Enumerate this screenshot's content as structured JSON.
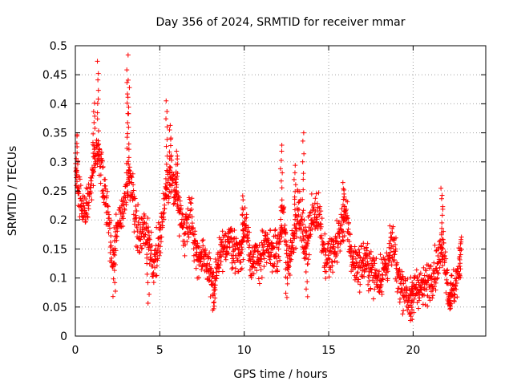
{
  "chart_data": {
    "type": "scatter",
    "title": "Day 356 of 2024, SRMTID for receiver mmar",
    "xlabel": "GPS time / hours",
    "ylabel": "SRMTID / TECUs",
    "xlim": [
      0,
      24.3
    ],
    "ylim": [
      0,
      0.5
    ],
    "x_ticks": [
      0,
      5,
      10,
      15,
      20
    ],
    "x_tick_labels": [
      "0",
      "5",
      "10",
      "15",
      "20"
    ],
    "y_ticks": [
      0,
      0.05,
      0.1,
      0.15,
      0.2,
      0.25,
      0.3,
      0.35,
      0.4,
      0.45,
      0.5
    ],
    "y_tick_labels": [
      "0",
      "0.05",
      "0.1",
      "0.15",
      "0.2",
      "0.25",
      "0.3",
      "0.35",
      "0.4",
      "0.45",
      "0.5"
    ],
    "grid": true,
    "series": [
      {
        "name": "mmar",
        "marker": "+",
        "color": "#ff0000",
        "x_start": 0.0,
        "x_end": 22.8,
        "trend": [
          [
            0.0,
            0.27
          ],
          [
            0.3,
            0.24
          ],
          [
            0.6,
            0.21
          ],
          [
            1.0,
            0.27
          ],
          [
            1.3,
            0.32
          ],
          [
            1.6,
            0.27
          ],
          [
            1.9,
            0.22
          ],
          [
            2.2,
            0.13
          ],
          [
            2.5,
            0.19
          ],
          [
            2.8,
            0.21
          ],
          [
            3.0,
            0.25
          ],
          [
            3.2,
            0.28
          ],
          [
            3.5,
            0.22
          ],
          [
            3.8,
            0.17
          ],
          [
            4.0,
            0.19
          ],
          [
            4.3,
            0.17
          ],
          [
            4.6,
            0.12
          ],
          [
            5.0,
            0.17
          ],
          [
            5.3,
            0.23
          ],
          [
            5.6,
            0.27
          ],
          [
            5.9,
            0.26
          ],
          [
            6.2,
            0.21
          ],
          [
            6.5,
            0.18
          ],
          [
            6.8,
            0.22
          ],
          [
            7.1,
            0.15
          ],
          [
            7.5,
            0.13
          ],
          [
            7.9,
            0.12
          ],
          [
            8.2,
            0.08
          ],
          [
            8.5,
            0.13
          ],
          [
            8.8,
            0.15
          ],
          [
            9.1,
            0.17
          ],
          [
            9.4,
            0.15
          ],
          [
            9.8,
            0.14
          ],
          [
            10.1,
            0.2
          ],
          [
            10.4,
            0.13
          ],
          [
            10.8,
            0.13
          ],
          [
            11.2,
            0.15
          ],
          [
            11.6,
            0.15
          ],
          [
            12.0,
            0.14
          ],
          [
            12.3,
            0.21
          ],
          [
            12.6,
            0.12
          ],
          [
            12.9,
            0.17
          ],
          [
            13.2,
            0.22
          ],
          [
            13.6,
            0.15
          ],
          [
            14.0,
            0.2
          ],
          [
            14.4,
            0.22
          ],
          [
            14.8,
            0.13
          ],
          [
            15.2,
            0.14
          ],
          [
            15.6,
            0.17
          ],
          [
            16.0,
            0.21
          ],
          [
            16.4,
            0.13
          ],
          [
            16.8,
            0.12
          ],
          [
            17.2,
            0.13
          ],
          [
            17.6,
            0.11
          ],
          [
            18.0,
            0.1
          ],
          [
            18.4,
            0.12
          ],
          [
            18.8,
            0.16
          ],
          [
            19.1,
            0.1
          ],
          [
            19.5,
            0.08
          ],
          [
            19.9,
            0.06
          ],
          [
            20.2,
            0.09
          ],
          [
            20.6,
            0.08
          ],
          [
            21.0,
            0.1
          ],
          [
            21.4,
            0.12
          ],
          [
            21.8,
            0.16
          ],
          [
            22.1,
            0.07
          ],
          [
            22.4,
            0.08
          ],
          [
            22.8,
            0.12
          ]
        ],
        "spikes": [
          [
            0.1,
            0.35
          ],
          [
            1.1,
            0.4
          ],
          [
            1.35,
            0.47
          ],
          [
            3.1,
            0.48
          ],
          [
            3.15,
            0.44
          ],
          [
            5.4,
            0.4
          ],
          [
            5.6,
            0.36
          ],
          [
            6.0,
            0.32
          ],
          [
            9.9,
            0.24
          ],
          [
            12.2,
            0.33
          ],
          [
            13.0,
            0.29
          ],
          [
            13.5,
            0.35
          ],
          [
            15.9,
            0.26
          ],
          [
            21.7,
            0.25
          ],
          [
            22.8,
            0.17
          ]
        ],
        "dips": [
          [
            2.3,
            0.065
          ],
          [
            4.3,
            0.058
          ],
          [
            8.2,
            0.045
          ],
          [
            12.5,
            0.065
          ],
          [
            13.7,
            0.068
          ],
          [
            19.9,
            0.025
          ],
          [
            22.2,
            0.048
          ]
        ]
      }
    ]
  }
}
